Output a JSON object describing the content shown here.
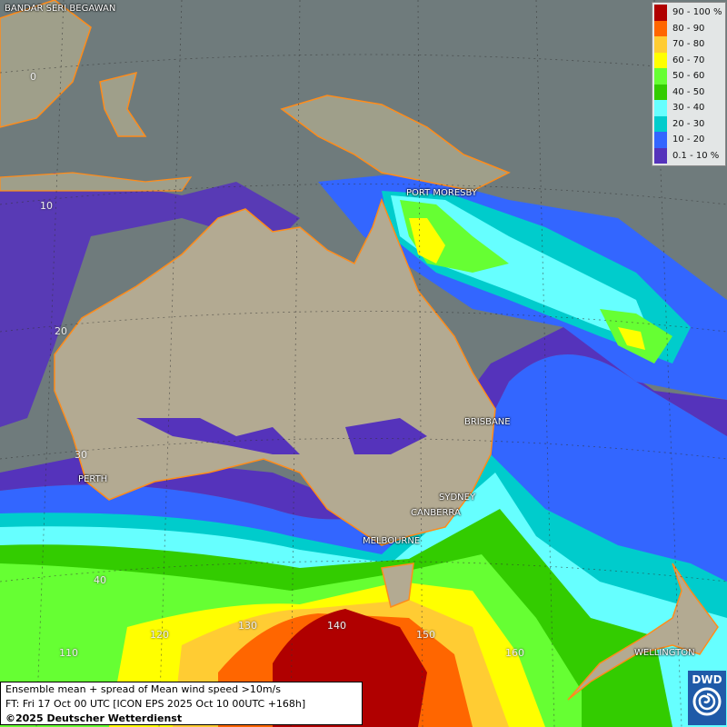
{
  "legend": {
    "items": [
      {
        "label": "90 - 100 %",
        "color": "#b00000"
      },
      {
        "label": "80 - 90",
        "color": "#ff6600"
      },
      {
        "label": "70 - 80",
        "color": "#ffcc33"
      },
      {
        "label": "60 - 70",
        "color": "#ffff00"
      },
      {
        "label": "50 - 60",
        "color": "#66ff33"
      },
      {
        "label": "40 - 50",
        "color": "#33cc00"
      },
      {
        "label": "30 - 40",
        "color": "#66ffff"
      },
      {
        "label": "20 - 30",
        "color": "#00cccc"
      },
      {
        "label": "10 - 20",
        "color": "#3366ff"
      },
      {
        "label": "0.1 - 10 %",
        "color": "#5533bb"
      }
    ]
  },
  "cities": {
    "bandar": "BANDAR SERI BEGAWAN",
    "port_moresby": "PORT MORESBY",
    "brisbane": "BRISBANE",
    "perth": "PERTH",
    "sydney": "SYDNEY",
    "canberra": "CANBERRA",
    "melbourne": "MELBOURNE",
    "wellington": "WELLINGTON"
  },
  "grid_labels": {
    "lat": [
      "0",
      "10",
      "20",
      "30",
      "40"
    ],
    "lon": [
      "110",
      "120",
      "130",
      "140",
      "150",
      "160"
    ]
  },
  "info": {
    "title": "Ensemble mean + spread of Mean wind speed >10m/s",
    "forecast_time": "FT: Fri 17 Oct 00 UTC [ICON EPS 2025 Oct 10 00UTC +168h]",
    "copyright": "©2025 Deutscher Wetterdienst"
  },
  "logo": {
    "text": "DWD"
  }
}
